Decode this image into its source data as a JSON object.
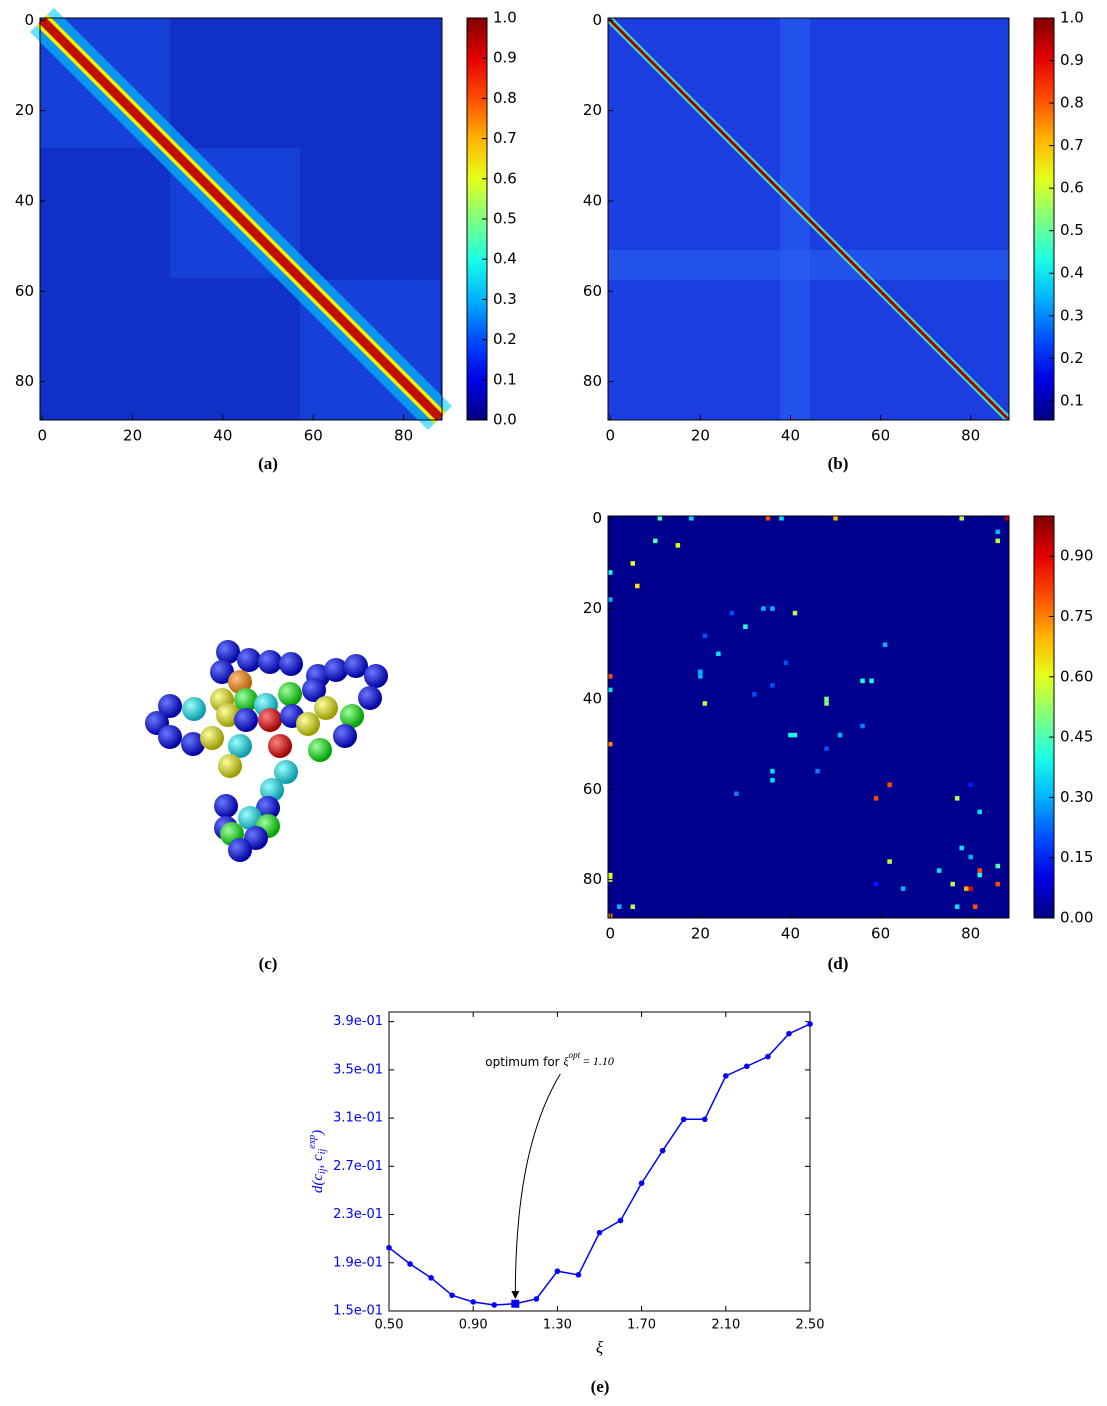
{
  "chart_data": [
    {
      "type": "heatmap",
      "caption": "(a)",
      "xlim": [
        -0.5,
        88.5
      ],
      "ylim": [
        88.5,
        -0.5
      ],
      "xticks": [
        0,
        20,
        40,
        60,
        80
      ],
      "yticks": [
        0,
        20,
        40,
        60,
        80
      ],
      "colorbar": {
        "lim": [
          0,
          1
        ],
        "ticks": [
          {
            "value": 0,
            "label": "0.0"
          },
          0.1,
          0.2,
          0.3,
          0.4,
          0.5,
          0.6,
          0.7,
          0.8,
          0.9,
          {
            "value": 1,
            "label": "1.0"
          }
        ]
      }
    },
    {
      "type": "heatmap",
      "caption": "(b)",
      "xlim": [
        -0.5,
        88.5
      ],
      "ylim": [
        88.5,
        -0.5
      ],
      "xticks": [
        0,
        20,
        40,
        60,
        80
      ],
      "yticks": [
        0,
        20,
        40,
        60,
        80
      ],
      "colorbar": {
        "lim": [
          0.055,
          1
        ],
        "ticks": [
          0.1,
          0.2,
          0.3,
          0.4,
          0.5,
          0.6,
          0.7,
          0.8,
          0.9,
          {
            "value": 1,
            "label": "1.0"
          }
        ]
      }
    },
    {
      "type": "heatmap",
      "caption": "(d)",
      "xlim": [
        -0.5,
        88.5
      ],
      "ylim": [
        88.5,
        -0.5
      ],
      "xticks": [
        0,
        20,
        40,
        60,
        80
      ],
      "yticks": [
        0,
        20,
        40,
        60,
        80
      ],
      "colorbar": {
        "lim": [
          0,
          1
        ],
        "ticks": [
          {
            "value": 0,
            "label": "0.00"
          },
          0.15,
          {
            "value": 0.3,
            "label": "0.30"
          },
          0.45,
          {
            "value": 0.6,
            "label": "0.60"
          },
          0.75,
          {
            "value": 0.9,
            "label": "0.90"
          }
        ]
      },
      "points": {
        "x": [
          11,
          18,
          35,
          38,
          50,
          78,
          88,
          86,
          86,
          10,
          15,
          0,
          5,
          6,
          0,
          27,
          34,
          36,
          41,
          21,
          30,
          24,
          61,
          39,
          20,
          20,
          0,
          0,
          36,
          32,
          48,
          48,
          21,
          56,
          58,
          56,
          40,
          41,
          51,
          48,
          0,
          36,
          36,
          46,
          62,
          59,
          28,
          80,
          77,
          82,
          78,
          62,
          59,
          65,
          73,
          76,
          80,
          82,
          82,
          86,
          79,
          80,
          86,
          77,
          81,
          0,
          0,
          2,
          5,
          0
        ],
        "y": [
          0,
          0,
          0,
          0,
          0,
          0,
          0,
          3,
          5,
          5,
          6,
          12,
          10,
          15,
          18,
          21,
          20,
          20,
          21,
          26,
          24,
          30,
          28,
          32,
          34,
          35,
          35,
          38,
          37,
          39,
          40,
          41,
          41,
          36,
          36,
          46,
          48,
          48,
          48,
          51,
          50,
          56,
          58,
          56,
          59,
          62,
          61,
          59,
          62,
          65,
          73,
          76,
          81,
          82,
          78,
          81,
          75,
          78,
          79,
          77,
          82,
          82,
          81,
          86,
          86,
          79,
          80,
          86,
          86,
          88
        ],
        "values": [
          0.45,
          0.35,
          0.8,
          0.35,
          0.7,
          0.55,
          0.95,
          0.3,
          0.55,
          0.45,
          0.6,
          0.4,
          0.6,
          0.65,
          0.3,
          0.2,
          0.3,
          0.3,
          0.55,
          0.2,
          0.4,
          0.35,
          0.3,
          0.2,
          0.3,
          0.3,
          0.8,
          0.35,
          0.2,
          0.2,
          0.5,
          0.5,
          0.55,
          0.4,
          0.4,
          0.25,
          0.4,
          0.4,
          0.3,
          0.2,
          0.75,
          0.35,
          0.35,
          0.25,
          0.8,
          0.8,
          0.25,
          0.15,
          0.55,
          0.35,
          0.35,
          0.55,
          0.15,
          0.3,
          0.35,
          0.55,
          0.3,
          0.8,
          0.4,
          0.45,
          0.7,
          0.9,
          0.8,
          0.35,
          0.8,
          0.6,
          0.55,
          0.3,
          0.55,
          0.75
        ]
      }
    },
    {
      "type": "line",
      "caption": "(e)",
      "xlabel": "ξ",
      "ylabel": [
        "d(c",
        "ij",
        ", c",
        "ij",
        "exp",
        ")"
      ],
      "x": [
        0.5,
        0.6,
        0.7,
        0.8,
        0.9,
        1.0,
        1.1,
        1.2,
        1.3,
        1.4,
        1.5,
        1.6,
        1.7,
        1.8,
        1.9,
        2.0,
        2.1,
        2.2,
        2.3,
        2.4,
        2.5
      ],
      "series": [
        {
          "color": "#0000ff",
          "values": [
            0.2025,
            0.189,
            0.1775,
            0.163,
            0.1575,
            0.155,
            0.156,
            0.16,
            0.183,
            0.18,
            0.215,
            0.225,
            0.256,
            0.283,
            0.309,
            0.309,
            0.345,
            0.353,
            0.361,
            0.38,
            0.388
          ]
        }
      ],
      "xlim": [
        0.5,
        2.5
      ],
      "ylim": [
        0.15,
        0.398
      ],
      "xticks": [
        {
          "value": 0.5,
          "label": "0.50"
        },
        {
          "value": 0.9,
          "label": "0.90"
        },
        {
          "value": 1.3,
          "label": "1.30"
        },
        {
          "value": 1.7,
          "label": "1.70"
        },
        {
          "value": 2.1,
          "label": "2.10"
        },
        {
          "value": 2.5,
          "label": "2.50"
        }
      ],
      "yticks": [
        {
          "value": 0.15,
          "label": "1.5e-01"
        },
        {
          "value": 0.19,
          "label": "1.9e-01"
        },
        {
          "value": 0.23,
          "label": "2.3e-01"
        },
        {
          "value": 0.27,
          "label": "2.7e-01"
        },
        {
          "value": 0.31,
          "label": "3.1e-01"
        },
        {
          "value": 0.35,
          "label": "3.5e-01"
        },
        {
          "value": 0.39,
          "label": "3.9e-01"
        }
      ],
      "annotation": {
        "text": "optimum for ",
        "symbol": "ξ",
        "superscript": "opt",
        "equals": " = ",
        "optimum": {
          "value": 1.1,
          "label": "1.10"
        }
      }
    }
  ],
  "image_panel": {
    "caption": "(c)"
  }
}
